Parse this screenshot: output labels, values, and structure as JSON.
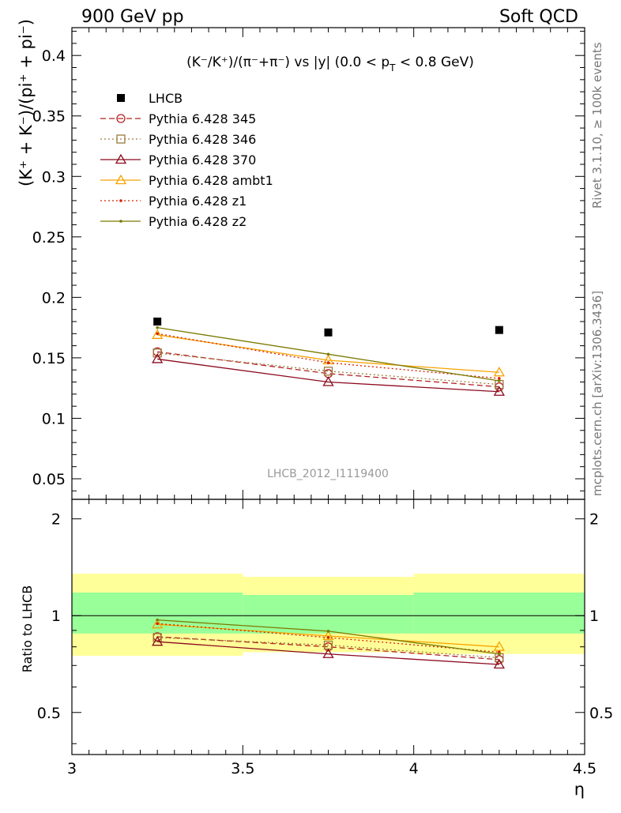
{
  "header": {
    "left": "900 GeV pp",
    "right": "Soft QCD"
  },
  "side_notes": {
    "rivet": "Rivet 3.1.10, ≥ 100k events",
    "mcplots": "mcplots.cern.ch [arXiv:1306.3436]"
  },
  "watermark": "LHCB_2012_I1119400",
  "chart_data": [
    {
      "type": "line",
      "title": "(K⁻/K⁺)/(π⁻+π⁻) vs |y| (0.0 < p_T < 0.8 GeV)",
      "title_parts": {
        "main": "(K⁻/K⁺)/(π⁻+π⁻) vs |y| (0.0 < p",
        "sub": "T",
        "tail": " < 0.8 GeV)"
      },
      "ylabel": "(K⁺ + K⁻)/(pi⁺ + pi⁻)",
      "xlabel": "",
      "xlim": [
        3.0,
        4.5
      ],
      "ylim": [
        0.033,
        0.423
      ],
      "yticks": [
        0.05,
        0.1,
        0.15,
        0.2,
        0.25,
        0.3,
        0.35,
        0.4
      ],
      "ytick_labels": [
        "0.05",
        "0.1",
        "0.15",
        "0.2",
        "0.25",
        "0.3",
        "0.35",
        "0.4"
      ],
      "x": [
        3.25,
        3.75,
        4.25
      ],
      "legend_position": "top-left",
      "data": {
        "name": "LHCB",
        "values": [
          0.18,
          0.171,
          0.173
        ]
      },
      "series": [
        {
          "name": "Pythia 6.428 345",
          "color": "#b22222",
          "dash": "dashed",
          "marker": "circle",
          "values": [
            0.155,
            0.137,
            0.126
          ]
        },
        {
          "name": "Pythia 6.428 346",
          "color": "#9c7a3c",
          "dash": "dotted",
          "marker": "square",
          "values": [
            0.154,
            0.139,
            0.128
          ]
        },
        {
          "name": "Pythia 6.428 370",
          "color": "#8b0a1e",
          "dash": "solid",
          "marker": "triangle",
          "values": [
            0.149,
            0.13,
            0.122
          ]
        },
        {
          "name": "Pythia 6.428 ambt1",
          "color": "#f5a300",
          "dash": "solid",
          "marker": "triangle",
          "values": [
            0.169,
            0.148,
            0.138
          ]
        },
        {
          "name": "Pythia 6.428 z1",
          "color": "#d62000",
          "dash": "dotted",
          "marker": "dot",
          "values": [
            0.17,
            0.146,
            0.133
          ]
        },
        {
          "name": "Pythia 6.428 z2",
          "color": "#7a7a00",
          "dash": "solid",
          "marker": "dot",
          "values": [
            0.175,
            0.153,
            0.131
          ]
        }
      ]
    },
    {
      "type": "line",
      "title": "",
      "ylabel": "Ratio to LHCB",
      "xlabel": "η",
      "xlim": [
        3.0,
        4.5
      ],
      "ylim": [
        0.37,
        2.3
      ],
      "log_y": true,
      "yticks": [
        0.5,
        1,
        2
      ],
      "ytick_labels": [
        "0.5",
        "1",
        "2"
      ],
      "xticks": [
        3,
        3.5,
        4,
        4.5
      ],
      "xtick_labels": [
        "3",
        "3.5",
        "4",
        "4.5"
      ],
      "x": [
        3.25,
        3.75,
        4.25
      ],
      "bands": [
        {
          "x_range": [
            3.0,
            3.5
          ],
          "inner": [
            0.88,
            1.18
          ],
          "outer": [
            0.75,
            1.35
          ]
        },
        {
          "x_range": [
            3.5,
            4.0
          ],
          "inner": [
            0.88,
            1.16
          ],
          "outer": [
            0.77,
            1.32
          ]
        },
        {
          "x_range": [
            4.0,
            4.5
          ],
          "inner": [
            0.88,
            1.18
          ],
          "outer": [
            0.76,
            1.35
          ]
        }
      ],
      "series": [
        {
          "name": "Pythia 6.428 345",
          "values": [
            0.86,
            0.8,
            0.73
          ]
        },
        {
          "name": "Pythia 6.428 346",
          "values": [
            0.855,
            0.81,
            0.74
          ]
        },
        {
          "name": "Pythia 6.428 370",
          "values": [
            0.83,
            0.76,
            0.705
          ]
        },
        {
          "name": "Pythia 6.428 ambt1",
          "values": [
            0.94,
            0.865,
            0.8
          ]
        },
        {
          "name": "Pythia 6.428 z1",
          "values": [
            0.945,
            0.855,
            0.77
          ]
        },
        {
          "name": "Pythia 6.428 z2",
          "values": [
            0.97,
            0.895,
            0.76
          ]
        }
      ]
    }
  ]
}
